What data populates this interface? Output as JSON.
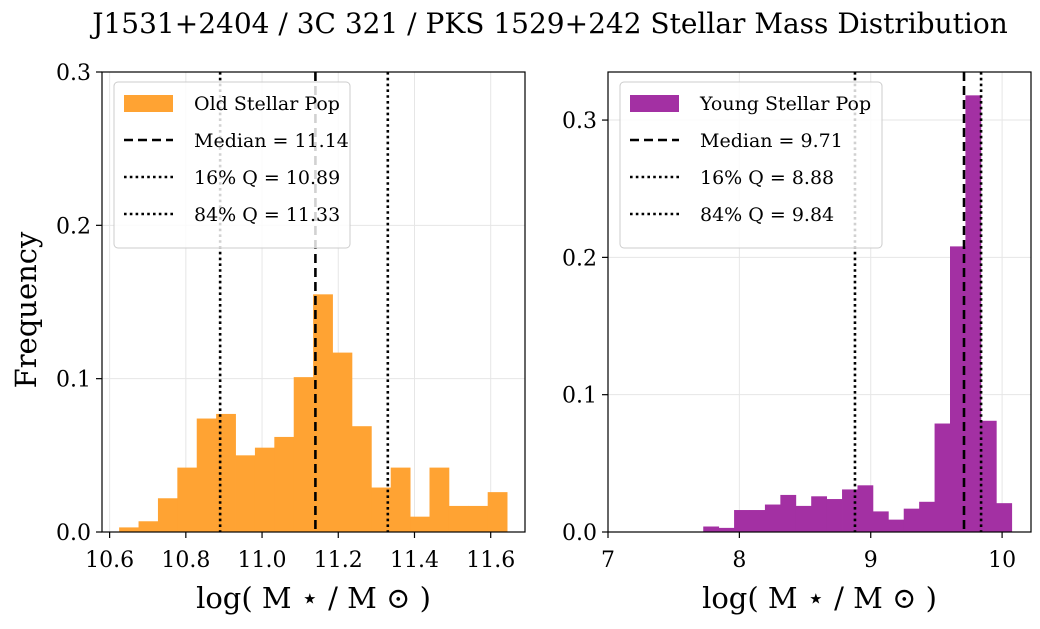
{
  "figure": {
    "suptitle": "J1531+2404 / 3C 321 / PKS 1529+242 Stellar Mass Distribution"
  },
  "chart_data": [
    {
      "type": "bar",
      "name": "old",
      "xlabel": "log( M ⋆ / M ⊙ )",
      "ylabel": "Frequency",
      "xlim": [
        10.58,
        11.69
      ],
      "ylim": [
        0,
        0.3
      ],
      "xticks": [
        10.6,
        10.8,
        11.0,
        11.2,
        11.4,
        11.6
      ],
      "xtick_labels": [
        "10.6",
        "10.8",
        "11.0",
        "11.2",
        "11.4",
        "11.6"
      ],
      "yticks": [
        0,
        0.1,
        0.2,
        0.3
      ],
      "ytick_labels": [
        "0.0",
        "0.1",
        "0.2",
        "0.3"
      ],
      "grid": true,
      "legend_position": "top-left",
      "series": [
        {
          "name": "Old Stellar Pop",
          "color": "#ffa333",
          "bin_edges": [
            10.625,
            10.6759,
            10.7268,
            10.7777,
            10.8286,
            10.8795,
            10.9304,
            10.9813,
            11.0322,
            11.0831,
            11.134,
            11.1849,
            11.2358,
            11.2867,
            11.3376,
            11.3885,
            11.4394,
            11.4903,
            11.5412,
            11.5921,
            11.643
          ],
          "values": [
            0.003,
            0.007,
            0.022,
            0.042,
            0.074,
            0.077,
            0.05,
            0.055,
            0.062,
            0.101,
            0.155,
            0.117,
            0.069,
            0.029,
            0.042,
            0.01,
            0.042,
            0.017,
            0.017,
            0.026
          ]
        }
      ],
      "lines": [
        {
          "label": "Median = 11.14",
          "x": 11.14,
          "style": "dashed"
        },
        {
          "label": "16% Q = 10.89",
          "x": 10.89,
          "style": "dotted"
        },
        {
          "label": "84% Q = 11.33",
          "x": 11.33,
          "style": "dotted"
        }
      ]
    },
    {
      "type": "bar",
      "name": "young",
      "xlabel": "log( M ⋆ / M ⊙ )",
      "ylabel": "",
      "xlim": [
        7.0,
        10.22
      ],
      "ylim": [
        0,
        0.335
      ],
      "xticks": [
        7,
        8,
        9,
        10
      ],
      "xtick_labels": [
        "7",
        "8",
        "9",
        "10"
      ],
      "yticks": [
        0,
        0.1,
        0.2,
        0.3
      ],
      "ytick_labels": [
        "0.0",
        "0.1",
        "0.2",
        "0.3"
      ],
      "grid": true,
      "legend_position": "top-left",
      "series": [
        {
          "name": "Young Stellar Pop",
          "color": "#a330a3",
          "bin_edges": [
            7.725,
            7.8424,
            7.9598,
            8.0772,
            8.1946,
            8.312,
            8.4294,
            8.5468,
            8.6642,
            8.7816,
            8.899,
            9.0164,
            9.1338,
            9.2512,
            9.3686,
            9.486,
            9.6034,
            9.7208,
            9.8382,
            9.9556,
            10.073
          ],
          "values": [
            0.004,
            0.003,
            0.016,
            0.016,
            0.02,
            0.027,
            0.019,
            0.026,
            0.024,
            0.031,
            0.034,
            0.015,
            0.009,
            0.017,
            0.022,
            0.079,
            0.208,
            0.318,
            0.081,
            0.021
          ]
        }
      ],
      "lines": [
        {
          "label": "Median = 9.71",
          "x": 9.71,
          "style": "dashed"
        },
        {
          "label": "16% Q = 8.88",
          "x": 8.88,
          "style": "dotted"
        },
        {
          "label": "84% Q = 9.84",
          "x": 9.84,
          "style": "dotted"
        }
      ]
    }
  ]
}
